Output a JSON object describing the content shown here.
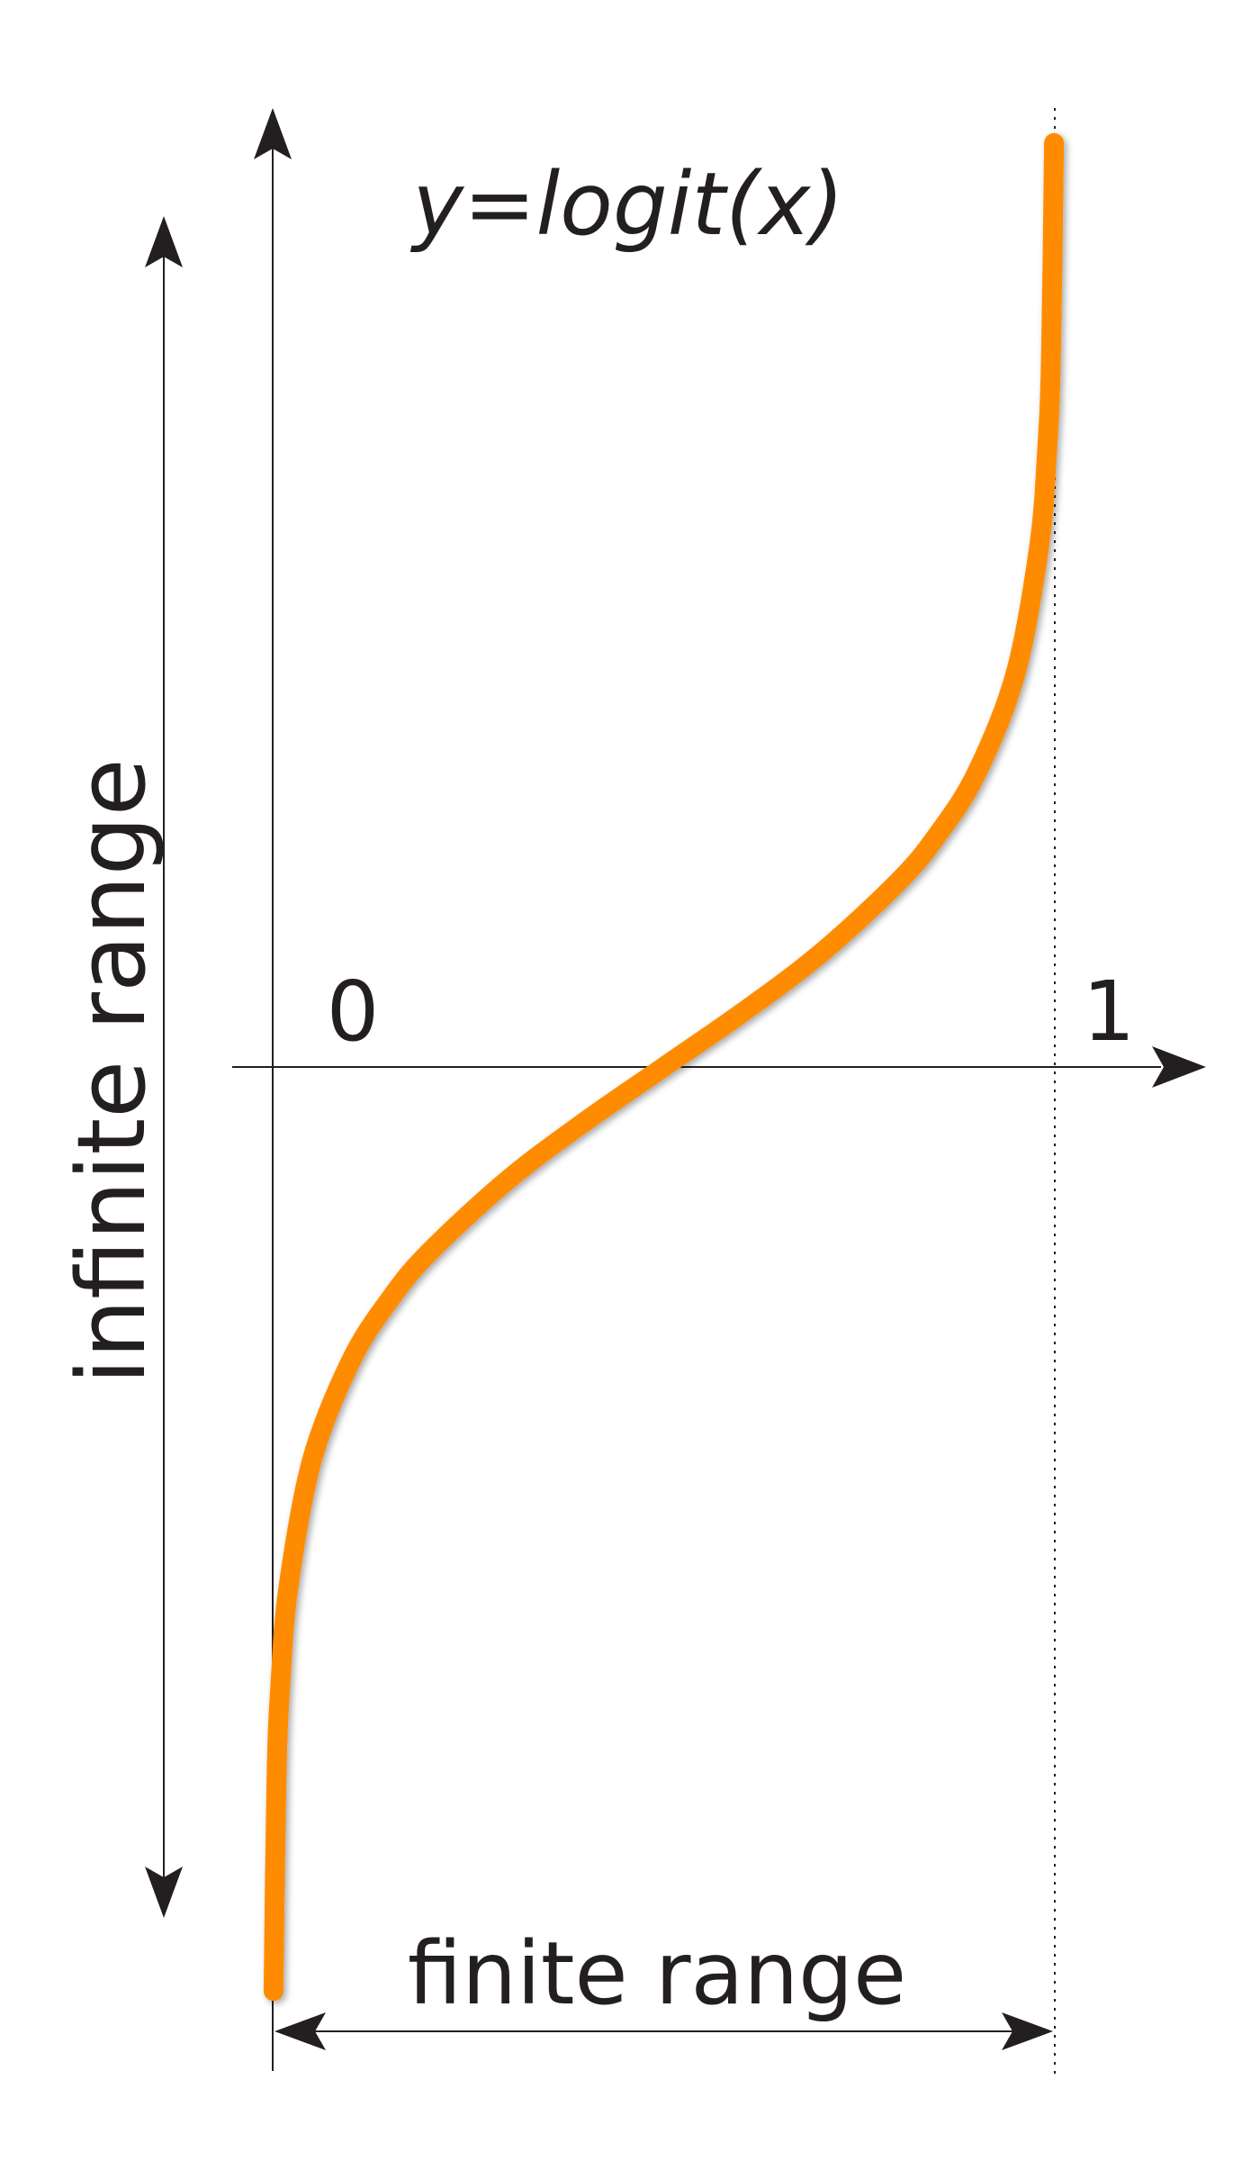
{
  "chart_data": {
    "type": "line",
    "title": "y=logit(x)",
    "x_tick_labels": [
      "0",
      "1"
    ],
    "x_range_label": "finite range",
    "y_range_label": "infinite range",
    "xlim": [
      0,
      1
    ],
    "ylim": [
      -7,
      7
    ],
    "series": [
      {
        "x": [
          0.001,
          0.005,
          0.01,
          0.02,
          0.05,
          0.1,
          0.15,
          0.2,
          0.3,
          0.4,
          0.5,
          0.6,
          0.7,
          0.8,
          0.85,
          0.9,
          0.95,
          0.98,
          0.99,
          0.995,
          0.999
        ],
        "y": [
          -6.907,
          -5.293,
          -4.595,
          -3.892,
          -2.944,
          -2.197,
          -1.735,
          -1.386,
          -0.847,
          -0.405,
          0,
          0.405,
          0.847,
          1.386,
          1.735,
          2.197,
          2.944,
          3.892,
          4.595,
          5.293,
          6.907
        ],
        "color": "#ff8c00"
      }
    ],
    "grid": false
  }
}
